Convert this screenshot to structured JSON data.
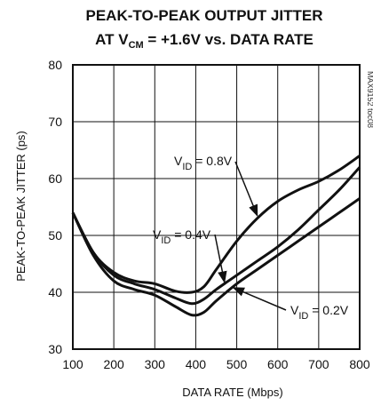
{
  "chart_data": {
    "type": "line",
    "title_line1": "PEAK-TO-PEAK OUTPUT JITTER",
    "title_line2_prefix": "AT V",
    "title_line2_sub": "CM",
    "title_line2_suffix": " = +1.6V vs. DATA RATE",
    "xlabel": "DATA RATE (Mbps)",
    "ylabel": "PEAK-TO-PEAK JITTER (ps)",
    "side_note": "MAX9152 toc08",
    "xlim": [
      100,
      800
    ],
    "ylim": [
      30,
      80
    ],
    "x_ticks": [
      "100",
      "200",
      "300",
      "400",
      "500",
      "600",
      "700",
      "800"
    ],
    "y_ticks": [
      "30",
      "40",
      "50",
      "60",
      "70",
      "80"
    ],
    "grid": true,
    "series": [
      {
        "name": "VID = 0.8V",
        "label_main": "V",
        "label_sub": "ID",
        "label_rest": " = 0.8V",
        "x": [
          100,
          150,
          200,
          250,
          300,
          350,
          390,
          420,
          450,
          500,
          550,
          600,
          650,
          700,
          750,
          800
        ],
        "y": [
          54,
          47,
          43.5,
          42,
          41.5,
          40.2,
          40,
          41,
          44,
          49,
          53,
          56,
          58,
          59.5,
          61.5,
          64
        ]
      },
      {
        "name": "VID = 0.4V",
        "label_main": "V",
        "label_sub": "ID",
        "label_rest": " = 0.4V",
        "x": [
          100,
          150,
          200,
          250,
          300,
          350,
          390,
          420,
          450,
          500,
          550,
          600,
          650,
          700,
          750,
          800
        ],
        "y": [
          54,
          47,
          43,
          41.5,
          40.5,
          39,
          38,
          38.8,
          40.5,
          43,
          45.5,
          48,
          51,
          54.5,
          58,
          62
        ]
      },
      {
        "name": "VID = 0.2V",
        "label_main": "V",
        "label_sub": "ID",
        "label_rest": " = 0.2V",
        "x": [
          100,
          150,
          200,
          250,
          300,
          350,
          390,
          420,
          450,
          500,
          550,
          600,
          650,
          700,
          750,
          800
        ],
        "y": [
          54,
          46.5,
          42,
          40.5,
          39.5,
          37.5,
          36,
          36.5,
          38.5,
          41.5,
          44,
          46.5,
          49,
          51.5,
          54,
          56.5
        ]
      }
    ],
    "colors": {
      "line": "#111111",
      "grid": "#111111",
      "background": "#ffffff"
    }
  }
}
